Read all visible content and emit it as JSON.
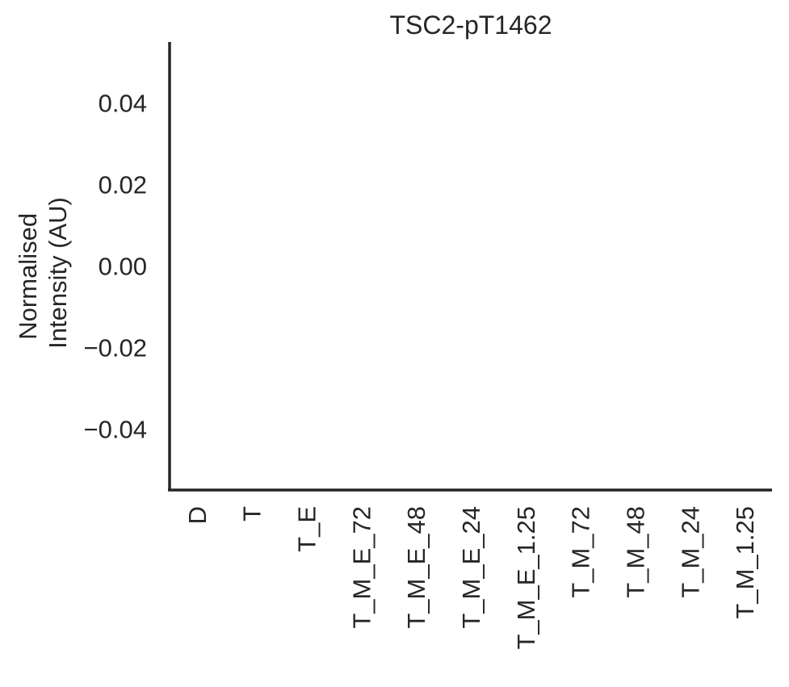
{
  "chart_data": {
    "type": "bar",
    "title": "TSC2-pT1462",
    "ylabel_lines": [
      "Normalised",
      "Intensity (AU)"
    ],
    "xlabel": "",
    "categories": [
      "D",
      "T",
      "T_E",
      "T_M_E_72",
      "T_M_E_48",
      "T_M_E_24",
      "T_M_E_1.25",
      "T_M_72",
      "T_M_48",
      "T_M_24",
      "T_M_1.25"
    ],
    "values": [
      null,
      null,
      null,
      null,
      null,
      null,
      null,
      null,
      null,
      null,
      null
    ],
    "ylim": [
      -0.055,
      0.055
    ],
    "yticks": [
      0.04,
      0.02,
      0.0,
      -0.02,
      -0.04
    ],
    "ytick_labels": [
      "0.04",
      "0.02",
      "0.00",
      "−0.02",
      "−0.04"
    ],
    "grid": false,
    "legend": "none",
    "axis_color": "#262626"
  }
}
